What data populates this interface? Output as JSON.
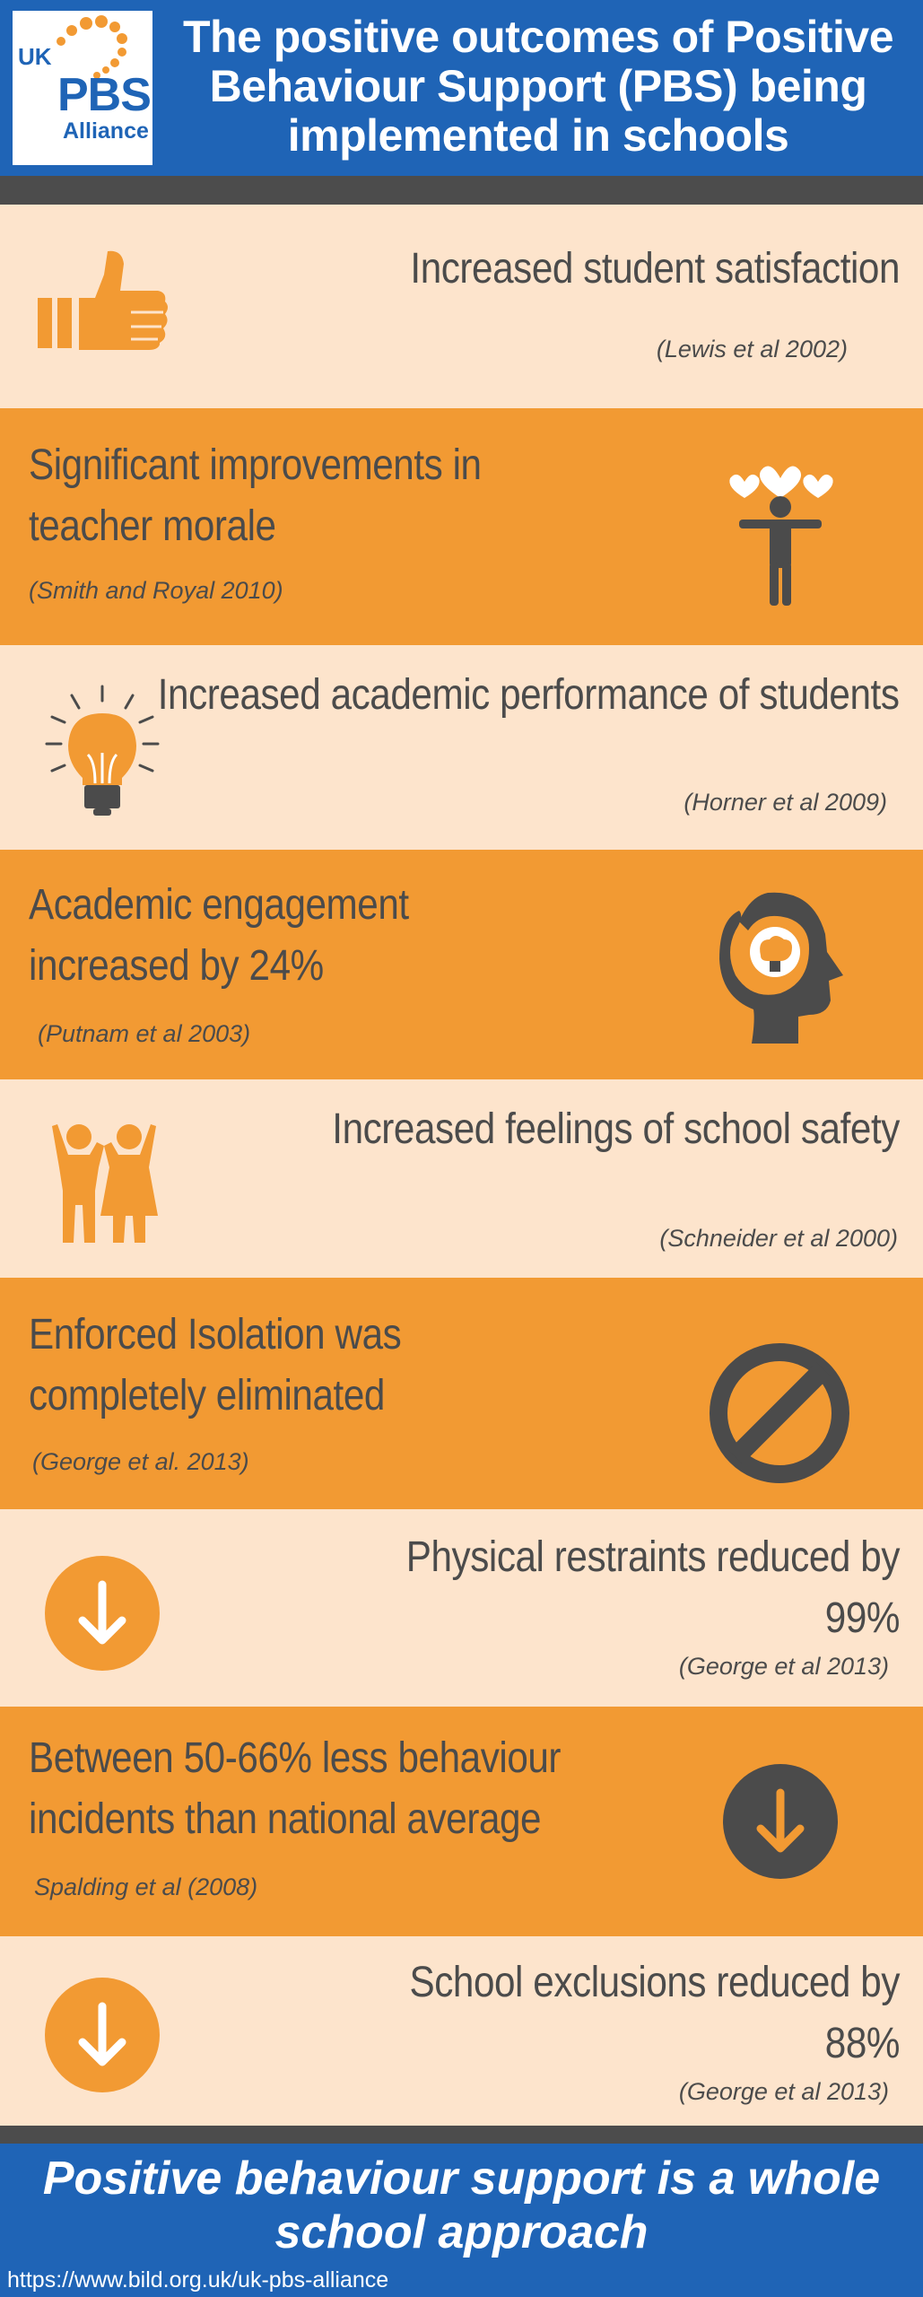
{
  "header": {
    "logo": {
      "uk": "UK",
      "pbs": "PBS",
      "alliance": "Alliance"
    },
    "title": "The positive outcomes of Positive Behaviour Support (PBS) being implemented in schools"
  },
  "colors": {
    "blue": "#1f64b6",
    "orange": "#f29a33",
    "cream": "#fde4cc",
    "gray": "#4b4b4b"
  },
  "outcomes": [
    {
      "headline": "Increased student satisfaction",
      "citation": "(Lewis et al 2002)",
      "icon": "thumbs-up-icon"
    },
    {
      "headline": "Significant improvements in teacher morale",
      "citation": "(Smith and Royal 2010)",
      "icon": "person-hearts-icon"
    },
    {
      "headline": "Increased academic performance of students",
      "citation": "(Horner et al 2009)",
      "icon": "lightbulb-icon"
    },
    {
      "headline": "Academic engagement increased by 24%",
      "citation": "(Putnam et al 2003)",
      "icon": "head-brain-icon"
    },
    {
      "headline": "Increased feelings of school safety",
      "citation": "(Schneider et al 2000)",
      "icon": "children-icon"
    },
    {
      "headline": "Enforced Isolation was completely eliminated",
      "citation": "(George et al. 2013)",
      "icon": "prohibited-icon"
    },
    {
      "headline": "Physical restraints reduced by 99%",
      "citation": "(George et al 2013)",
      "icon": "down-arrow-circle-icon"
    },
    {
      "headline": "Between 50-66% less behaviour incidents than national average",
      "citation": "Spalding et al (2008)",
      "icon": "down-arrow-circle-icon"
    },
    {
      "headline": "School exclusions reduced by 88%",
      "citation": "(George et al 2013)",
      "icon": "down-arrow-circle-icon"
    }
  ],
  "footer": {
    "tagline": "Positive behaviour support is a whole school approach",
    "url": "https://www.bild.org.uk/uk-pbs-alliance"
  }
}
